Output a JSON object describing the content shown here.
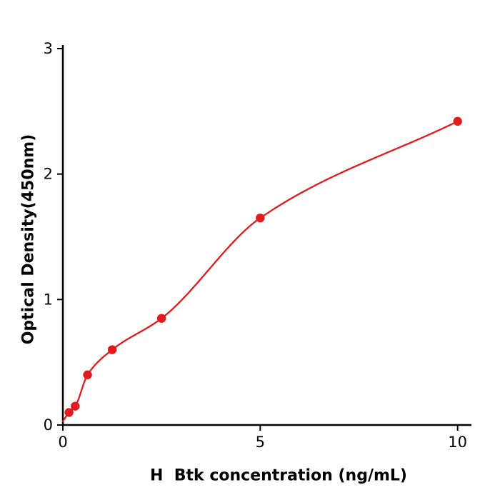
{
  "chart_data": {
    "type": "scatter",
    "title": "",
    "xlabel": "H  Btk concentration (ng/mL)",
    "ylabel": "Optical Density(450nm)",
    "x": [
      0.156,
      0.313,
      0.625,
      1.25,
      2.5,
      5,
      10
    ],
    "y": [
      0.1,
      0.15,
      0.4,
      0.6,
      0.85,
      1.65,
      2.42
    ],
    "fit_curve": true,
    "curve_origin": [
      0,
      0.03
    ],
    "xlim": [
      0,
      10.35
    ],
    "ylim": [
      0,
      3
    ],
    "xticks": [
      0,
      5,
      10
    ],
    "yticks": [
      0,
      1,
      2,
      3
    ],
    "point_color": "#e41a1c",
    "line_color": "#e41a1c",
    "axis_color": "#000000",
    "background": "#ffffff",
    "grid": false,
    "legend": null
  }
}
